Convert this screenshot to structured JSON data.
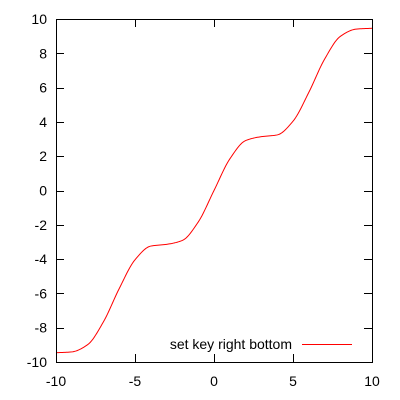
{
  "chart_data": {
    "type": "line",
    "title": "",
    "xlabel": "",
    "ylabel": "",
    "xlim": [
      -10,
      10
    ],
    "ylim": [
      -10,
      10
    ],
    "x_ticks": [
      "-10",
      "-5",
      "0",
      "5",
      "10"
    ],
    "y_ticks": [
      "-10",
      "-8",
      "-6",
      "-4",
      "-2",
      "0",
      "2",
      "4",
      "6",
      "8",
      "10"
    ],
    "x_tick_values": [
      -10,
      -5,
      0,
      5,
      10
    ],
    "y_tick_values": [
      -10,
      -8,
      -6,
      -4,
      -2,
      0,
      2,
      4,
      6,
      8,
      10
    ],
    "grid": false,
    "legend_position": "bottom-right",
    "series": [
      {
        "name": "set key right bottom",
        "color": "#ff0000",
        "x": [
          -10,
          -9,
          -8,
          -7,
          -6,
          -5,
          -4,
          -3,
          -2,
          -1,
          0,
          1,
          2,
          3,
          4,
          5,
          6,
          7,
          8,
          9,
          10
        ],
        "y": [
          -9.46,
          -9.41,
          -8.99,
          -7.66,
          -5.72,
          -4.04,
          -3.24,
          -3.14,
          -2.91,
          -1.84,
          0.0,
          1.84,
          2.91,
          3.14,
          3.24,
          4.04,
          5.72,
          7.66,
          8.99,
          9.41,
          9.46
        ]
      }
    ]
  }
}
